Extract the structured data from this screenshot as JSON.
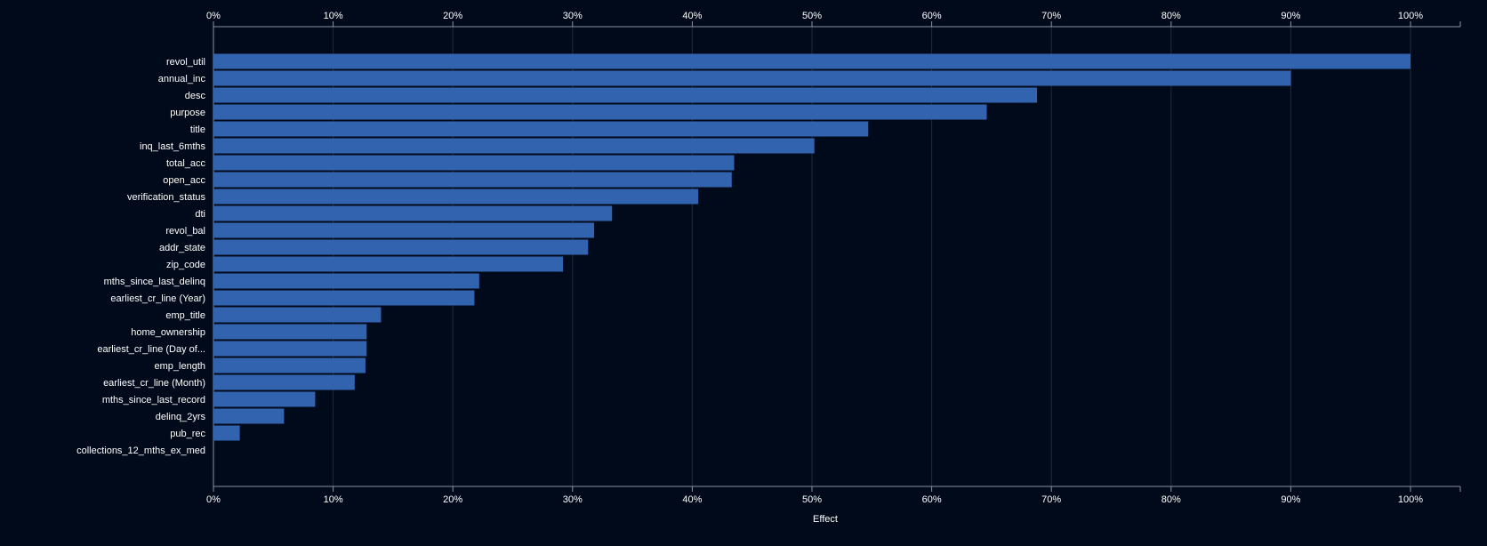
{
  "chart_data": {
    "type": "bar",
    "orientation": "horizontal",
    "xlabel": "Effect",
    "ylabel": "",
    "xlim": [
      0,
      100
    ],
    "x_ticks": [
      "0%",
      "10%",
      "20%",
      "30%",
      "40%",
      "50%",
      "60%",
      "70%",
      "80%",
      "90%",
      "100%"
    ],
    "grid": true,
    "bar_color": "#3163ae",
    "background_color": "#010a1a",
    "categories": [
      "revol_util",
      "annual_inc",
      "desc",
      "purpose",
      "title",
      "inq_last_6mths",
      "total_acc",
      "open_acc",
      "verification_status",
      "dti",
      "revol_bal",
      "addr_state",
      "zip_code",
      "mths_since_last_delinq",
      "earliest_cr_line (Year)",
      "emp_title",
      "home_ownership",
      "earliest_cr_line (Day of...",
      "emp_length",
      "earliest_cr_line (Month)",
      "mths_since_last_record",
      "delinq_2yrs",
      "pub_rec",
      "collections_12_mths_ex_med"
    ],
    "values": [
      100,
      90,
      68.8,
      64.6,
      54.7,
      50.2,
      43.5,
      43.3,
      40.5,
      33.3,
      31.8,
      31.3,
      29.2,
      22.2,
      21.8,
      14.0,
      12.8,
      12.8,
      12.7,
      11.8,
      8.5,
      5.9,
      2.2,
      0
    ]
  }
}
